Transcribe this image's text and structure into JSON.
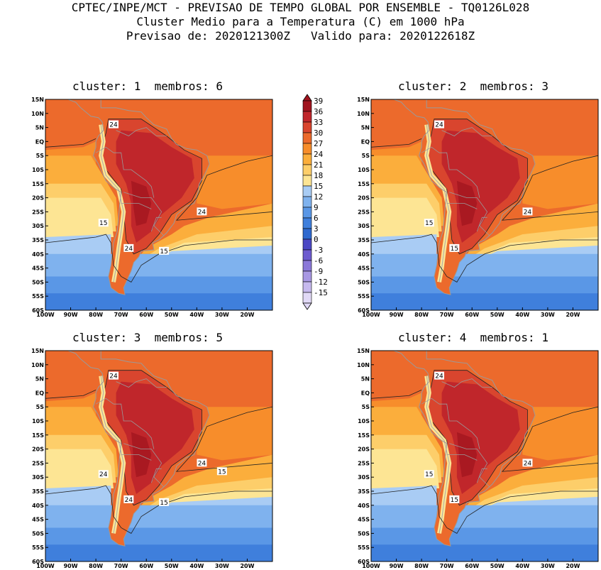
{
  "header": {
    "line1": "CPTEC/INPE/MCT - PREVISAO DE TEMPO GLOBAL POR ENSEMBLE - TQ0126L028",
    "line2": "Cluster Medio para a Temperatura (C) em 1000 hPa",
    "line3": "Previsao de: 2020121300Z   Valido para: 2020122618Z"
  },
  "panels": [
    {
      "title": "cluster: 1  membros: 6",
      "labels": [
        "24",
        "24",
        "24",
        "15",
        "15"
      ]
    },
    {
      "title": "cluster: 2  membros: 3",
      "labels": [
        "24",
        "24",
        "15",
        "15"
      ]
    },
    {
      "title": "cluster: 3  membros: 5",
      "labels": [
        "24",
        "24",
        "24",
        "24",
        "15",
        "15"
      ]
    },
    {
      "title": "cluster: 4  membros: 1",
      "labels": [
        "24",
        "24",
        "15",
        "15"
      ]
    }
  ],
  "axes": {
    "lat_labels": [
      "15N",
      "10N",
      "5N",
      "EQ",
      "5S",
      "10S",
      "15S",
      "20S",
      "25S",
      "30S",
      "35S",
      "40S",
      "45S",
      "50S",
      "55S",
      "60S"
    ],
    "lon_labels": [
      "100W",
      "90W",
      "80W",
      "70W",
      "60W",
      "50W",
      "40W",
      "30W",
      "20W"
    ]
  },
  "colorbar": {
    "labels": [
      "39",
      "36",
      "33",
      "30",
      "27",
      "24",
      "21",
      "18",
      "15",
      "12",
      "9",
      "6",
      "3",
      "0",
      "-3",
      "-6",
      "-9",
      "-12",
      "-15"
    ],
    "colors": [
      "#a0141e",
      "#c0262b",
      "#d9452e",
      "#ec6a2c",
      "#f78d2b",
      "#fbae3c",
      "#fdce6a",
      "#fde594",
      "#a9ccf4",
      "#7fb2ee",
      "#5a97e6",
      "#3f7fdc",
      "#2f69cf",
      "#4b48c4",
      "#6d5bcf",
      "#8b78d9",
      "#a898e3",
      "#c6b9ee",
      "#e1d9f6"
    ]
  },
  "map_colors": {
    "ocean_north": "#ec6a2c",
    "ocean_mid": "#f78d2b",
    "band_21": "#fbae3c",
    "band_18": "#fdce6a",
    "band_15": "#fde594",
    "band_12": "#a9ccf4",
    "band_9": "#7fb2ee",
    "band_6": "#5a97e6",
    "band_3": "#3f7fdc",
    "land_hot": "#d9452e",
    "land_hotter": "#c0262b",
    "land_core": "#a0141e",
    "border": "#9a9a9a"
  }
}
